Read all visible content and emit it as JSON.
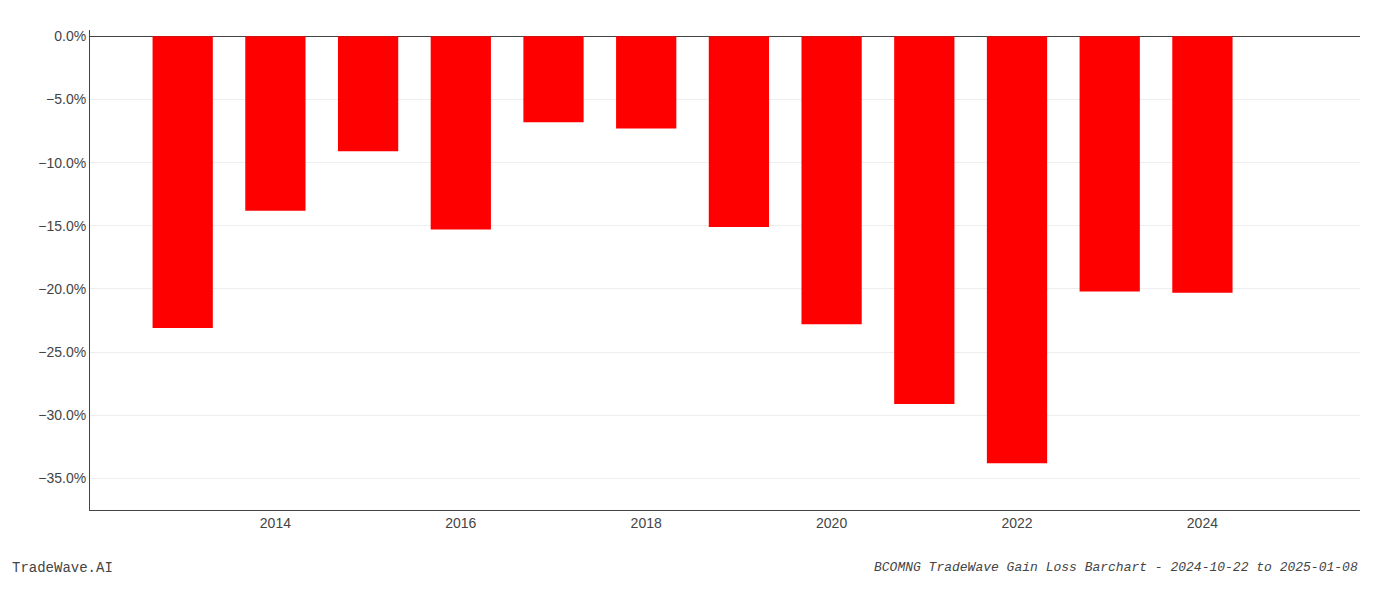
{
  "chart_data": {
    "type": "bar",
    "title": "BCOMNG TradeWave Gain Loss Barchart - 2024-10-22 to 2025-01-08",
    "annotations": [
      "TradeWave.AI"
    ],
    "x": [
      2013,
      2014,
      2015,
      2016,
      2017,
      2018,
      2019,
      2020,
      2021,
      2022,
      2023,
      2024
    ],
    "values": [
      -0.231,
      -0.138,
      -0.091,
      -0.153,
      -0.068,
      -0.073,
      -0.151,
      -0.228,
      -0.291,
      -0.338,
      -0.202,
      -0.203
    ],
    "color": "#ff0000",
    "xlim": [
      2012.0,
      2025.7
    ],
    "xticks": [
      2014,
      2016,
      2018,
      2020,
      2022,
      2024
    ],
    "ylim": [
      -0.375,
      0.005
    ],
    "yticks": [
      {
        "value": 0.0,
        "label": "0.0%"
      },
      {
        "value": -0.05,
        "label": "−5.0%"
      },
      {
        "value": -0.1,
        "label": "−10.0%"
      },
      {
        "value": -0.15,
        "label": "−15.0%"
      },
      {
        "value": -0.2,
        "label": "−20.0%"
      },
      {
        "value": -0.25,
        "label": "−25.0%"
      },
      {
        "value": -0.3,
        "label": "−30.0%"
      },
      {
        "value": -0.35,
        "label": "−35.0%"
      }
    ],
    "grid": true
  }
}
